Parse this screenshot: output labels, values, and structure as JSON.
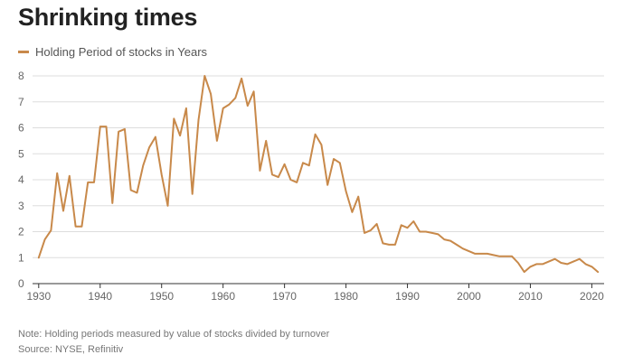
{
  "chart_data": {
    "type": "line",
    "title": "Shrinking times",
    "xlabel": "",
    "ylabel": "",
    "xlim": [
      1929,
      2022
    ],
    "ylim": [
      0,
      8
    ],
    "x_ticks": [
      1930,
      1940,
      1950,
      1960,
      1970,
      1980,
      1990,
      2000,
      2010,
      2020
    ],
    "y_ticks": [
      0,
      1,
      2,
      3,
      4,
      5,
      6,
      7,
      8
    ],
    "grid": true,
    "legend": "top-left",
    "series": [
      {
        "name": "Holding Period of stocks in Years",
        "color": "#c8894a",
        "x": [
          1930,
          1931,
          1932,
          1933,
          1934,
          1935,
          1936,
          1937,
          1938,
          1939,
          1940,
          1941,
          1942,
          1943,
          1944,
          1945,
          1946,
          1947,
          1948,
          1949,
          1950,
          1951,
          1952,
          1953,
          1954,
          1955,
          1956,
          1957,
          1958,
          1959,
          1960,
          1961,
          1962,
          1963,
          1964,
          1965,
          1966,
          1967,
          1968,
          1969,
          1970,
          1971,
          1972,
          1973,
          1974,
          1975,
          1976,
          1977,
          1978,
          1979,
          1980,
          1981,
          1982,
          1983,
          1984,
          1985,
          1986,
          1987,
          1988,
          1989,
          1990,
          1991,
          1992,
          1993,
          1994,
          1995,
          1996,
          1997,
          1998,
          1999,
          2000,
          2001,
          2002,
          2003,
          2004,
          2005,
          2006,
          2007,
          2008,
          2009,
          2010,
          2011,
          2012,
          2013,
          2014,
          2015,
          2016,
          2017,
          2018,
          2019,
          2020,
          2021
        ],
        "values": [
          1.0,
          1.7,
          2.05,
          4.25,
          2.8,
          4.15,
          2.2,
          2.2,
          3.9,
          3.9,
          6.05,
          6.05,
          3.1,
          5.85,
          5.95,
          3.6,
          3.5,
          4.55,
          5.25,
          5.65,
          4.2,
          3.0,
          6.35,
          5.7,
          6.75,
          3.45,
          6.3,
          8.0,
          7.3,
          5.5,
          6.75,
          6.9,
          7.15,
          7.9,
          6.85,
          7.4,
          4.35,
          5.5,
          4.2,
          4.1,
          4.6,
          4.0,
          3.9,
          4.65,
          4.55,
          5.75,
          5.35,
          3.8,
          4.8,
          4.65,
          3.55,
          2.75,
          3.35,
          1.95,
          2.05,
          2.3,
          1.55,
          1.5,
          1.5,
          2.25,
          2.15,
          2.4,
          2.0,
          2.0,
          1.95,
          1.9,
          1.7,
          1.65,
          1.5,
          1.35,
          1.25,
          1.15,
          1.15,
          1.15,
          1.1,
          1.05,
          1.05,
          1.05,
          0.8,
          0.45,
          0.65,
          0.75,
          0.75,
          0.85,
          0.95,
          0.8,
          0.75,
          0.85,
          0.95,
          0.75,
          0.65,
          0.45
        ]
      }
    ],
    "note": "Note: Holding periods measured by value of stocks divided by turnover",
    "source": "Source: NYSE, Refinitiv"
  }
}
